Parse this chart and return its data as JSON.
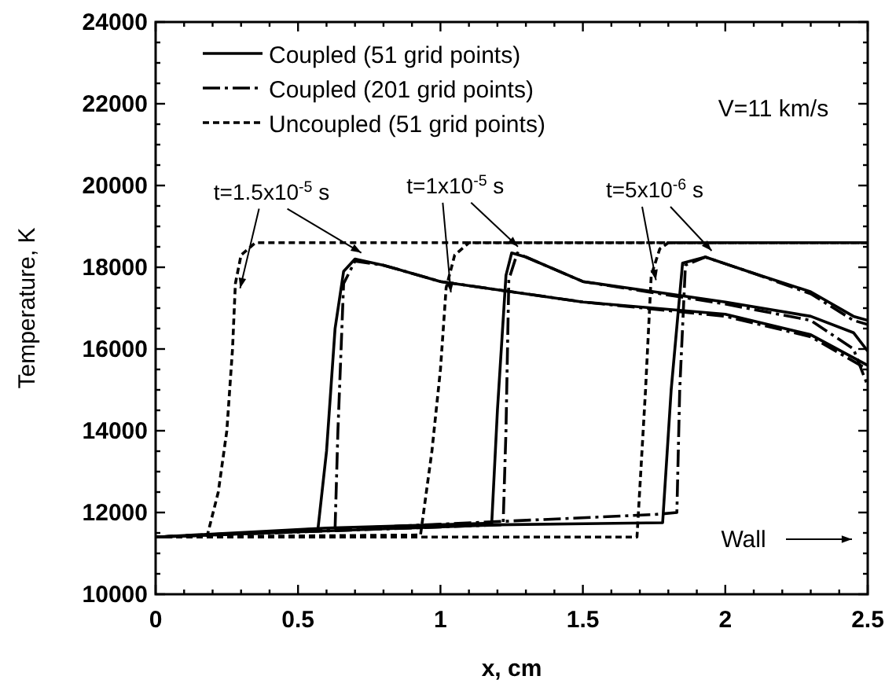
{
  "chart_data": {
    "type": "line",
    "xlabel": "x, cm",
    "ylabel": "Temperature, K",
    "xlim": [
      0,
      2.5
    ],
    "ylim": [
      10000,
      24000
    ],
    "xticks": [
      0,
      {
        "value": 0.1,
        "label": null
      },
      {
        "value": 0.2,
        "label": null
      },
      {
        "value": 0.3,
        "label": null
      },
      {
        "value": 0.4,
        "label": null
      },
      0.5,
      {
        "value": 0.6,
        "label": null
      },
      {
        "value": 0.7,
        "label": null
      },
      {
        "value": 0.8,
        "label": null
      },
      {
        "value": 0.9,
        "label": null
      },
      1,
      {
        "value": 1.1,
        "label": null
      },
      {
        "value": 1.2,
        "label": null
      },
      {
        "value": 1.3,
        "label": null
      },
      {
        "value": 1.4,
        "label": null
      },
      1.5,
      {
        "value": 1.6,
        "label": null
      },
      {
        "value": 1.7,
        "label": null
      },
      {
        "value": 1.8,
        "label": null
      },
      {
        "value": 1.9,
        "label": null
      },
      2,
      {
        "value": 2.1,
        "label": null
      },
      {
        "value": 2.2,
        "label": null
      },
      {
        "value": 2.3,
        "label": null
      },
      {
        "value": 2.4,
        "label": null
      },
      2.5
    ],
    "yticks": [
      10000,
      {
        "value": 10500,
        "label": null
      },
      {
        "value": 11000,
        "label": null
      },
      {
        "value": 11500,
        "label": null
      },
      12000,
      {
        "value": 12500,
        "label": null
      },
      {
        "value": 13000,
        "label": null
      },
      {
        "value": 13500,
        "label": null
      },
      14000,
      {
        "value": 14500,
        "label": null
      },
      {
        "value": 15000,
        "label": null
      },
      {
        "value": 15500,
        "label": null
      },
      16000,
      {
        "value": 16500,
        "label": null
      },
      {
        "value": 17000,
        "label": null
      },
      {
        "value": 17500,
        "label": null
      },
      18000,
      {
        "value": 18500,
        "label": null
      },
      {
        "value": 19000,
        "label": null
      },
      {
        "value": 19500,
        "label": null
      },
      20000,
      {
        "value": 20500,
        "label": null
      },
      {
        "value": 21000,
        "label": null
      },
      {
        "value": 21500,
        "label": null
      },
      22000,
      {
        "value": 22500,
        "label": null
      },
      {
        "value": 23000,
        "label": null
      },
      {
        "value": 23500,
        "label": null
      },
      24000
    ],
    "grid": false,
    "legend": "top left",
    "series": [
      {
        "name": "Coupled (51 grid points)",
        "color": "#000000",
        "line_style": "solid",
        "x": [
          0,
          0.3,
          0.57,
          0.6,
          0.63,
          0.66,
          0.7,
          0.8,
          1.0,
          1.5,
          2.0,
          2.3,
          2.5
        ],
        "values": [
          11400,
          11480,
          11600,
          13500,
          16500,
          17900,
          18200,
          18050,
          17650,
          17150,
          16850,
          16350,
          15600
        ]
      },
      {
        "name": "Coupled (201 grid points)",
        "color": "#000000",
        "line_style": "dashed",
        "x": [
          0,
          0.63,
          0.64,
          0.66,
          0.7,
          0.8,
          1.0,
          1.5,
          2.0,
          2.3,
          2.5
        ],
        "values": [
          11400,
          11600,
          14000,
          17600,
          18150,
          18050,
          17650,
          17150,
          16800,
          16300,
          15500
        ]
      },
      {
        "name": "Uncoupled (51 grid points)",
        "color": "#000000",
        "line_style": "dotted",
        "x": [
          0,
          0.18,
          0.22,
          0.25,
          0.27,
          0.28,
          0.3,
          0.35,
          2.5
        ],
        "values": [
          11400,
          11400,
          12500,
          14000,
          16000,
          17600,
          18300,
          18600,
          18600
        ]
      },
      {
        "color": "#000000",
        "line_style": "solid",
        "x": [
          0,
          0.6,
          1.18,
          1.2,
          1.23,
          1.25,
          1.3,
          1.5,
          1.8,
          2.0,
          2.3,
          2.45,
          2.5
        ],
        "values": [
          11400,
          11620,
          11740,
          14500,
          17800,
          18350,
          18250,
          17650,
          17350,
          17150,
          16800,
          16400,
          15950
        ]
      },
      {
        "color": "#000000",
        "line_style": "dashed",
        "x": [
          0,
          1.22,
          1.23,
          1.24,
          1.27,
          1.3,
          1.5,
          2.0,
          2.3,
          2.45,
          2.5
        ],
        "values": [
          11400,
          11700,
          14000,
          17700,
          18350,
          18250,
          17650,
          17100,
          16700,
          16000,
          15100
        ]
      },
      {
        "color": "#000000",
        "line_style": "dotted",
        "x": [
          0,
          0.93,
          0.97,
          1.0,
          1.02,
          1.05,
          1.1,
          2.5
        ],
        "values": [
          11400,
          11450,
          13500,
          15500,
          17500,
          18300,
          18600,
          18600
        ]
      },
      {
        "color": "#000000",
        "line_style": "solid",
        "x": [
          0,
          1.2,
          1.78,
          1.81,
          1.85,
          1.93,
          2.1,
          2.3,
          2.45,
          2.5
        ],
        "values": [
          11400,
          11700,
          11750,
          15000,
          18100,
          18250,
          17850,
          17400,
          16800,
          16700
        ]
      },
      {
        "color": "#000000",
        "line_style": "dashed",
        "x": [
          0,
          1.75,
          1.83,
          1.84,
          1.86,
          1.93,
          2.1,
          2.3,
          2.45,
          2.5
        ],
        "values": [
          11400,
          11950,
          12000,
          15000,
          18050,
          18250,
          17850,
          17350,
          16700,
          16600
        ]
      },
      {
        "color": "#000000",
        "line_style": "dotted",
        "x": [
          0,
          1.69,
          1.72,
          1.74,
          1.77,
          1.8,
          2.5
        ],
        "values": [
          11400,
          11400,
          15000,
          17800,
          18450,
          18600,
          18600
        ]
      }
    ],
    "annotations": [
      {
        "text": "t=1.5x10$^{-5}$ s",
        "x": 0.7,
        "y": 18200
      },
      {
        "text": "t=1x10$^{-5}$ s",
        "x": 1.25,
        "y": 18350
      },
      {
        "text": "t=5x10$^{-6}$ s",
        "x": 1.93,
        "y": 18250
      },
      "V=11 km/s",
      "Wall"
    ]
  }
}
